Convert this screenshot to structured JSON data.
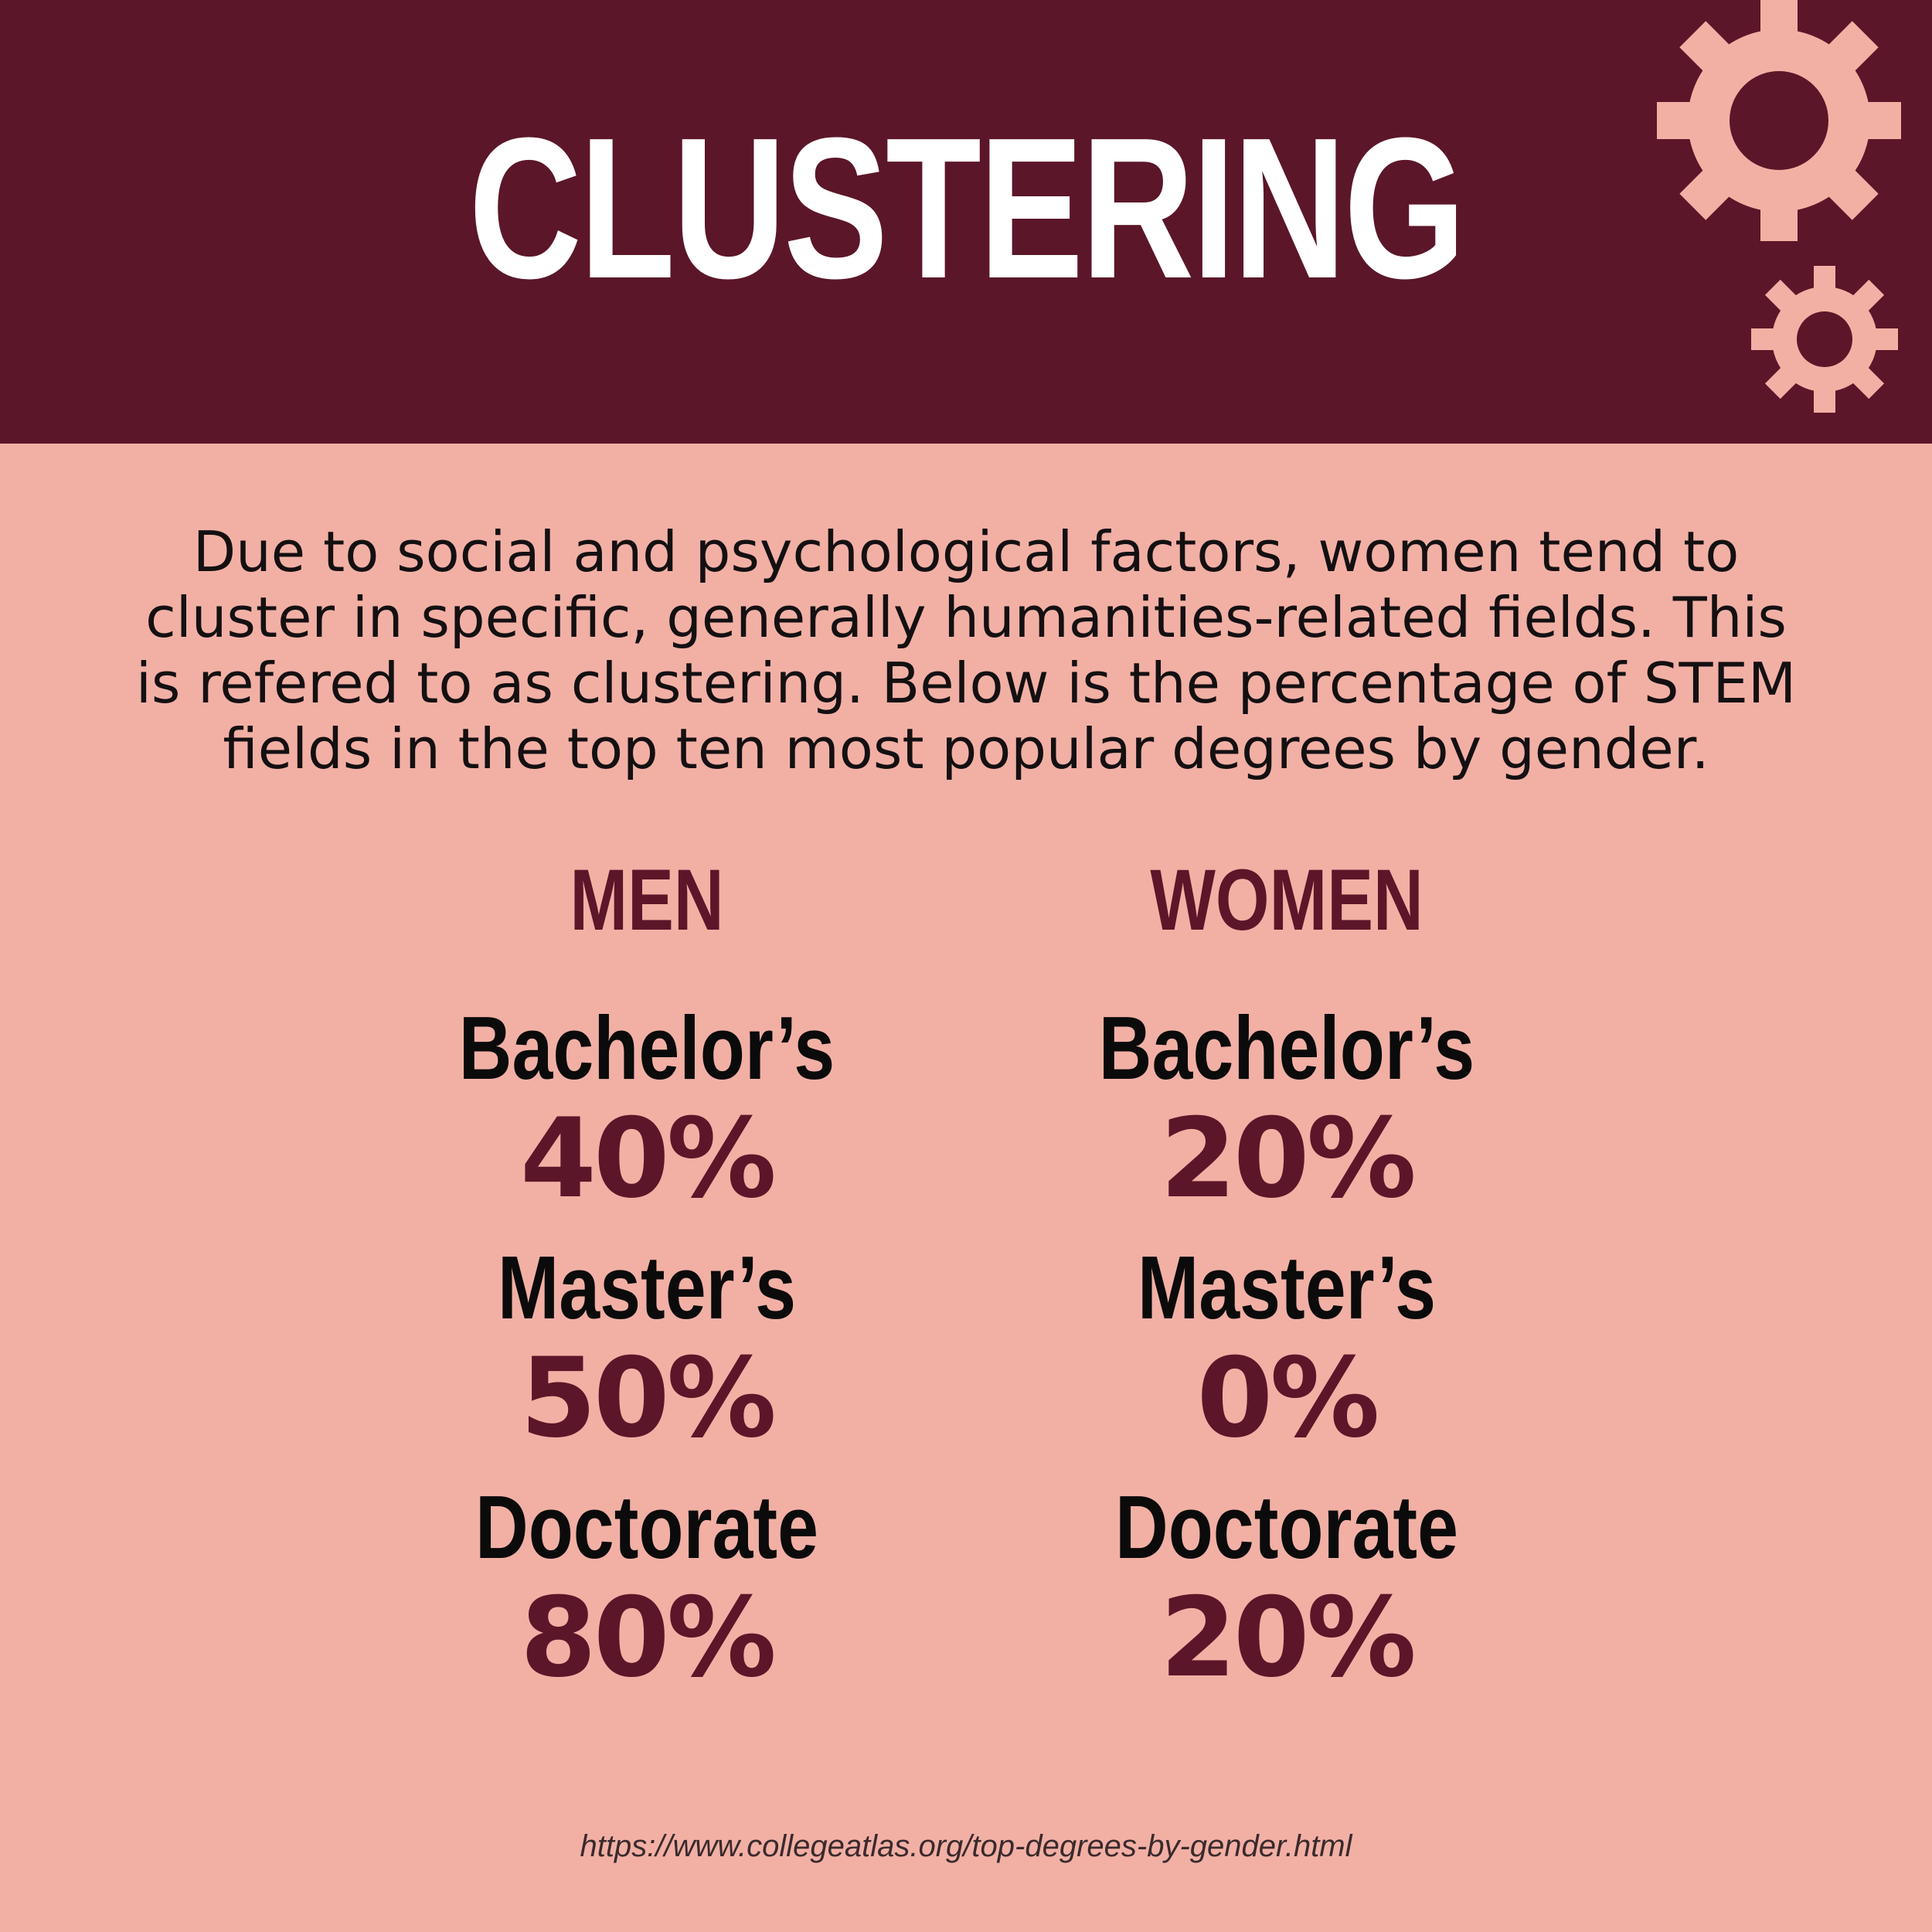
{
  "header": {
    "title": "CLUSTERING",
    "background_color": "#5c1629",
    "gear_color": "#f2b0a5",
    "icons": [
      "gear-icon-large",
      "gear-icon-small"
    ]
  },
  "intro_text": "Due to social and psychological factors, women tend to cluster in specific, generally humanities-related fields. This is refered to as clustering. Below is the percentage of STEM fields in the top ten most popular degrees by gender.",
  "columns": {
    "men": {
      "heading": "MEN",
      "items": [
        {
          "degree": "Bachelor’s",
          "percent": "40%"
        },
        {
          "degree": "Master’s",
          "percent": "50%"
        },
        {
          "degree": "Doctorate",
          "percent": "80%"
        }
      ]
    },
    "women": {
      "heading": "WOMEN",
      "items": [
        {
          "degree": "Bachelor’s",
          "percent": "20%"
        },
        {
          "degree": "Master’s",
          "percent": "0%"
        },
        {
          "degree": "Doctorate",
          "percent": "20%"
        }
      ]
    }
  },
  "source_url": "https://www.collegeatlas.org/top-degrees-by-gender.html",
  "colors": {
    "background": "#f2b0a5",
    "accent": "#5c1629",
    "text": "#0b0b0b",
    "title_text": "#ffffff"
  }
}
